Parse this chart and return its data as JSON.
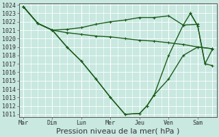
{
  "bg_color": "#c8e8e0",
  "grid_color": "#ffffff",
  "line_color": "#1a5c1a",
  "xlabel": "Pression niveau de la mer( hPa )",
  "xlabel_fontsize": 8,
  "tick_fontsize": 6,
  "day_labels": [
    "Mar",
    "Dim",
    "Lun",
    "Mer",
    "Jeu",
    "Ven",
    "Sam"
  ],
  "ylim_min": 1011,
  "ylim_max": 1024,
  "yticks": [
    1011,
    1012,
    1013,
    1014,
    1015,
    1016,
    1017,
    1018,
    1019,
    1020,
    1021,
    1022,
    1023,
    1024
  ],
  "series": [
    {
      "x": [
        0.0,
        0.5,
        1.0,
        1.5,
        2.0,
        2.5,
        3.0,
        3.5,
        4.0,
        4.5,
        5.0,
        5.5,
        6.0
      ],
      "y": [
        1023.8,
        1021.8,
        1021.0,
        1021.1,
        1021.3,
        1021.7,
        1022.0,
        1022.2,
        1022.5,
        1022.5,
        1022.7,
        1021.6,
        1021.7
      ]
    },
    {
      "x": [
        0.0,
        0.5,
        1.0,
        1.5,
        2.0,
        2.5,
        3.0,
        3.5,
        4.0,
        4.5,
        5.0,
        5.5,
        6.0,
        6.5
      ],
      "y": [
        1023.8,
        1021.8,
        1021.0,
        1020.7,
        1020.5,
        1020.3,
        1020.2,
        1020.0,
        1019.8,
        1019.7,
        1019.5,
        1019.3,
        1019.0,
        1018.8
      ]
    },
    {
      "x": [
        0.0,
        0.5,
        1.0,
        1.5,
        2.0,
        2.5,
        3.0,
        3.5,
        4.0,
        4.25,
        4.5,
        5.0,
        5.5,
        6.0,
        6.5
      ],
      "y": [
        1023.8,
        1021.8,
        1021.0,
        1019.0,
        1017.3,
        1015.2,
        1013.0,
        1011.0,
        1011.1,
        1012.0,
        1013.3,
        1015.2,
        1018.0,
        1019.0,
        1018.8
      ]
    },
    {
      "x": [
        0.0,
        0.5,
        1.0,
        1.5,
        2.0,
        2.5,
        3.0,
        3.5,
        4.0,
        4.25,
        4.5,
        5.0,
        5.5,
        5.75,
        6.0,
        6.25,
        6.5
      ],
      "y": [
        1023.8,
        1021.8,
        1021.0,
        1019.0,
        1017.3,
        1015.2,
        1013.0,
        1011.0,
        1011.1,
        1012.0,
        1013.3,
        1018.0,
        1021.6,
        1023.0,
        1021.5,
        1017.0,
        1016.8
      ]
    },
    {
      "x": [
        5.75,
        6.0,
        6.25,
        6.5
      ],
      "y": [
        1023.0,
        1021.5,
        1017.0,
        1018.7
      ]
    }
  ]
}
